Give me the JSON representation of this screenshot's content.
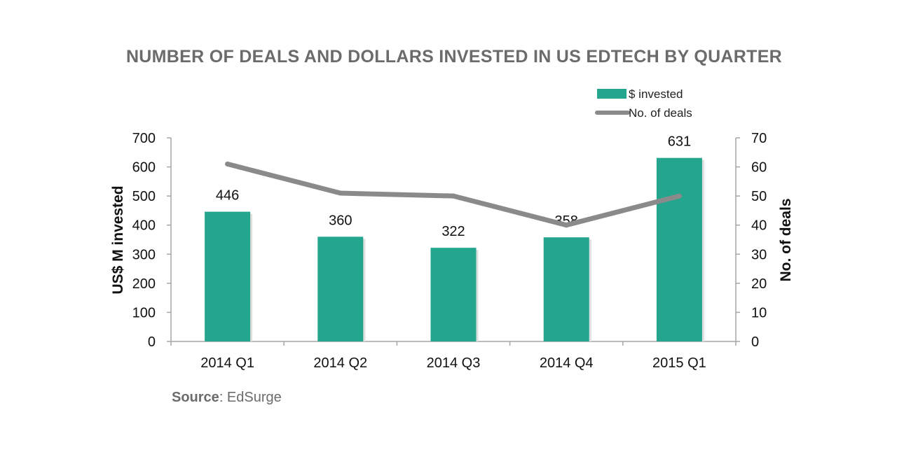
{
  "chart_data": {
    "type": "bar",
    "title": "NUMBER OF DEALS AND DOLLARS INVESTED IN US EDTECH BY QUARTER",
    "categories": [
      "2014 Q1",
      "2014 Q2",
      "2014 Q3",
      "2014 Q4",
      "2015 Q1"
    ],
    "series": [
      {
        "name": "$ invested",
        "type": "bar",
        "axis": "left",
        "values": [
          446,
          360,
          322,
          358,
          631
        ],
        "labels": [
          "446",
          "360",
          "322",
          "358",
          "631"
        ],
        "color": "#23a68d"
      },
      {
        "name": "No. of deals",
        "type": "line",
        "axis": "right",
        "values": [
          61,
          51,
          50,
          40,
          50
        ],
        "color": "#8a8a8a"
      }
    ],
    "ylabel": "US$ M invested",
    "ylabel_right": "No. of deals",
    "ylim": [
      0,
      700
    ],
    "ylim_right": [
      0,
      70
    ],
    "yticks": [
      "0",
      "100",
      "200",
      "300",
      "400",
      "500",
      "600",
      "700"
    ],
    "yticks_right": [
      "0",
      "10",
      "20",
      "30",
      "40",
      "50",
      "60",
      "70"
    ],
    "legend_position": "top-right",
    "grid": false
  },
  "source": {
    "label": "Source",
    "text": ": EdSurge"
  }
}
